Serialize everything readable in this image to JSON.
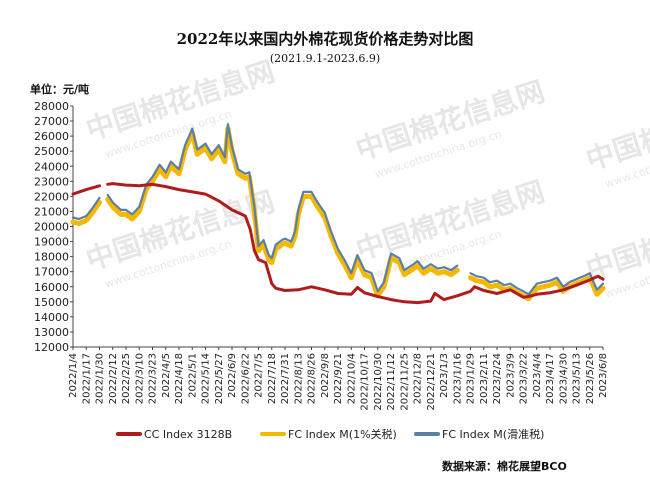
{
  "chart_data": {
    "type": "line",
    "title": "2022年以来国内外棉花现货价格走势对比图",
    "subtitle": "(2021.9.1-2023.6.9)",
    "unit_label": "单位：元/吨",
    "source": "数据来源：棉花展望BCO",
    "watermark_cn": "中国棉花信息网",
    "watermark_url": "www.cottonchina.org.cn",
    "ylim": [
      12000,
      28000
    ],
    "yticks": [
      12000,
      13000,
      14000,
      15000,
      16000,
      17000,
      18000,
      19000,
      20000,
      21000,
      22000,
      23000,
      24000,
      25000,
      26000,
      27000,
      28000
    ],
    "x_start": "2022/1/4",
    "x_end": "2023/6/8",
    "xticks": [
      "2022/1/4",
      "2022/1/17",
      "2022/1/30",
      "2022/2/12",
      "2022/2/25",
      "2022/3/10",
      "2022/3/23",
      "2022/4/5",
      "2022/4/18",
      "2022/5/1",
      "2022/5/14",
      "2022/5/27",
      "2022/6/9",
      "2022/6/22",
      "2022/7/5",
      "2022/7/18",
      "2022/7/31",
      "2022/8/13",
      "2022/8/26",
      "2022/9/8",
      "2022/9/21",
      "2022/10/4",
      "2022/10/17",
      "2022/10/30",
      "2022/11/12",
      "2022/11/25",
      "2022/12/8",
      "2022/12/21",
      "2023/1/3",
      "2023/1/16",
      "2023/1/29",
      "2023/2/11",
      "2023/2/24",
      "2023/3/9",
      "2023/3/22",
      "2023/4/4",
      "2023/4/17",
      "2023/4/30",
      "2023/5/13",
      "2023/5/26",
      "2023/6/8"
    ],
    "legend_position": "bottom",
    "series": [
      {
        "name": "CC Index 3128B",
        "color": "#b01c1c",
        "points": [
          [
            "2022/1/4",
            22150
          ],
          [
            "2022/1/17",
            22450
          ],
          [
            "2022/1/30",
            22700
          ],
          null,
          [
            "2022/2/7",
            22800
          ],
          [
            "2022/2/12",
            22850
          ],
          [
            "2022/2/25",
            22750
          ],
          [
            "2022/3/10",
            22700
          ],
          [
            "2022/3/23",
            22800
          ],
          [
            "2022/4/5",
            22650
          ],
          [
            "2022/4/18",
            22450
          ],
          [
            "2022/5/1",
            22300
          ],
          [
            "2022/5/14",
            22150
          ],
          [
            "2022/5/27",
            21700
          ],
          [
            "2022/6/9",
            21100
          ],
          [
            "2022/6/22",
            20700
          ],
          [
            "2022/6/27",
            19800
          ],
          [
            "2022/7/1",
            18400
          ],
          [
            "2022/7/5",
            17800
          ],
          [
            "2022/7/12",
            17600
          ],
          [
            "2022/7/18",
            16200
          ],
          [
            "2022/7/22",
            15900
          ],
          [
            "2022/7/31",
            15750
          ],
          [
            "2022/8/13",
            15800
          ],
          [
            "2022/8/26",
            16000
          ],
          [
            "2022/9/8",
            15800
          ],
          [
            "2022/9/21",
            15550
          ],
          [
            "2022/10/4",
            15500
          ],
          [
            "2022/10/10",
            15950
          ],
          [
            "2022/10/17",
            15600
          ],
          [
            "2022/10/30",
            15350
          ],
          [
            "2022/11/12",
            15150
          ],
          [
            "2022/11/25",
            15000
          ],
          [
            "2022/12/8",
            14950
          ],
          [
            "2022/12/21",
            15050
          ],
          [
            "2022/12/25",
            15550
          ],
          [
            "2023/1/3",
            15150
          ],
          [
            "2023/1/16",
            15400
          ],
          [
            "2023/1/29",
            15700
          ],
          [
            "2023/2/2",
            16000
          ],
          [
            "2023/2/11",
            15750
          ],
          [
            "2023/2/24",
            15550
          ],
          [
            "2023/3/9",
            15800
          ],
          [
            "2023/3/22",
            15300
          ],
          [
            "2023/3/27",
            15350
          ],
          [
            "2023/4/4",
            15500
          ],
          [
            "2023/4/17",
            15600
          ],
          [
            "2023/4/30",
            15800
          ],
          [
            "2023/5/13",
            16100
          ],
          [
            "2023/5/26",
            16450
          ],
          [
            "2023/6/3",
            16700
          ],
          [
            "2023/6/8",
            16500
          ]
        ]
      },
      {
        "name": "FC Index M(1%关税)",
        "color": "#f5b800",
        "points": [
          [
            "2022/1/4",
            20300
          ],
          [
            "2022/1/10",
            20200
          ],
          [
            "2022/1/17",
            20400
          ],
          [
            "2022/1/24",
            21000
          ],
          [
            "2022/1/30",
            21600
          ],
          null,
          [
            "2022/2/7",
            21800
          ],
          [
            "2022/2/12",
            21300
          ],
          [
            "2022/2/20",
            20800
          ],
          [
            "2022/2/25",
            20800
          ],
          [
            "2022/3/3",
            20500
          ],
          [
            "2022/3/10",
            21000
          ],
          [
            "2022/3/17",
            22500
          ],
          [
            "2022/3/23",
            23000
          ],
          [
            "2022/3/30",
            23800
          ],
          [
            "2022/4/5",
            23300
          ],
          [
            "2022/4/10",
            24000
          ],
          [
            "2022/4/18",
            23500
          ],
          [
            "2022/4/24",
            25100
          ],
          [
            "2022/5/1",
            26200
          ],
          [
            "2022/5/6",
            24800
          ],
          [
            "2022/5/14",
            25200
          ],
          [
            "2022/5/20",
            24500
          ],
          [
            "2022/5/27",
            25100
          ],
          [
            "2022/6/2",
            24300
          ],
          [
            "2022/6/5",
            26500
          ],
          [
            "2022/6/9",
            25000
          ],
          [
            "2022/6/15",
            23500
          ],
          [
            "2022/6/22",
            23200
          ],
          [
            "2022/6/26",
            23300
          ],
          [
            "2022/7/1",
            21000
          ],
          [
            "2022/7/5",
            18400
          ],
          [
            "2022/7/10",
            18800
          ],
          [
            "2022/7/15",
            17800
          ],
          [
            "2022/7/18",
            17600
          ],
          [
            "2022/7/22",
            18500
          ],
          [
            "2022/7/28",
            18800
          ],
          [
            "2022/7/31",
            18900
          ],
          [
            "2022/8/6",
            18700
          ],
          [
            "2022/8/10",
            19400
          ],
          [
            "2022/8/13",
            20800
          ],
          [
            "2022/8/18",
            22000
          ],
          [
            "2022/8/26",
            22000
          ],
          [
            "2022/9/1",
            21300
          ],
          [
            "2022/9/8",
            20600
          ],
          [
            "2022/9/14",
            19400
          ],
          [
            "2022/9/21",
            18200
          ],
          [
            "2022/9/28",
            17400
          ],
          [
            "2022/10/4",
            16600
          ],
          [
            "2022/10/10",
            17800
          ],
          [
            "2022/10/17",
            16800
          ],
          [
            "2022/10/24",
            16600
          ],
          [
            "2022/10/30",
            15400
          ],
          [
            "2022/11/5",
            16000
          ],
          [
            "2022/11/12",
            17900
          ],
          [
            "2022/11/20",
            17600
          ],
          [
            "2022/11/25",
            16800
          ],
          [
            "2022/12/2",
            17100
          ],
          [
            "2022/12/8",
            17400
          ],
          [
            "2022/12/14",
            16900
          ],
          [
            "2022/12/21",
            17200
          ],
          [
            "2022/12/28",
            16900
          ],
          [
            "2023/1/3",
            17000
          ],
          [
            "2023/1/10",
            16800
          ],
          [
            "2023/1/16",
            17100
          ],
          null,
          [
            "2023/1/29",
            16600
          ],
          [
            "2023/2/4",
            16400
          ],
          [
            "2023/2/11",
            16300
          ],
          [
            "2023/2/17",
            16000
          ],
          [
            "2023/2/24",
            16100
          ],
          [
            "2023/3/3",
            15800
          ],
          [
            "2023/3/9",
            15900
          ],
          [
            "2023/3/16",
            15600
          ],
          [
            "2023/3/22",
            15400
          ],
          [
            "2023/3/27",
            15200
          ],
          [
            "2023/4/4",
            15900
          ],
          [
            "2023/4/10",
            16000
          ],
          [
            "2023/4/17",
            16100
          ],
          [
            "2023/4/24",
            16300
          ],
          [
            "2023/4/30",
            15700
          ],
          [
            "2023/5/6",
            16000
          ],
          [
            "2023/5/13",
            16200
          ],
          [
            "2023/5/20",
            16400
          ],
          [
            "2023/5/26",
            16600
          ],
          [
            "2023/6/2",
            15500
          ],
          [
            "2023/6/8",
            15900
          ]
        ]
      },
      {
        "name": "FC Index M(滑准税)",
        "color": "#5b7fa5",
        "points": [
          [
            "2022/1/4",
            20600
          ],
          [
            "2022/1/10",
            20500
          ],
          [
            "2022/1/17",
            20700
          ],
          [
            "2022/1/24",
            21300
          ],
          [
            "2022/1/30",
            21900
          ],
          null,
          [
            "2022/2/7",
            22100
          ],
          [
            "2022/2/12",
            21600
          ],
          [
            "2022/2/20",
            21100
          ],
          [
            "2022/2/25",
            21100
          ],
          [
            "2022/3/3",
            20800
          ],
          [
            "2022/3/10",
            21300
          ],
          [
            "2022/3/17",
            22800
          ],
          [
            "2022/3/23",
            23300
          ],
          [
            "2022/3/30",
            24100
          ],
          [
            "2022/4/5",
            23600
          ],
          [
            "2022/4/10",
            24300
          ],
          [
            "2022/4/18",
            23800
          ],
          [
            "2022/4/24",
            25400
          ],
          [
            "2022/5/1",
            26500
          ],
          [
            "2022/5/6",
            25100
          ],
          [
            "2022/5/14",
            25500
          ],
          [
            "2022/5/20",
            24800
          ],
          [
            "2022/5/27",
            25400
          ],
          [
            "2022/6/2",
            24600
          ],
          [
            "2022/6/5",
            26800
          ],
          [
            "2022/6/9",
            25300
          ],
          [
            "2022/6/15",
            23800
          ],
          [
            "2022/6/22",
            23500
          ],
          [
            "2022/6/26",
            23600
          ],
          [
            "2022/7/1",
            21300
          ],
          [
            "2022/7/5",
            18700
          ],
          [
            "2022/7/10",
            19100
          ],
          [
            "2022/7/15",
            18100
          ],
          [
            "2022/7/18",
            17900
          ],
          [
            "2022/7/22",
            18800
          ],
          [
            "2022/7/28",
            19100
          ],
          [
            "2022/7/31",
            19200
          ],
          [
            "2022/8/6",
            19000
          ],
          [
            "2022/8/10",
            19700
          ],
          [
            "2022/8/13",
            21100
          ],
          [
            "2022/8/18",
            22300
          ],
          [
            "2022/8/26",
            22300
          ],
          [
            "2022/9/1",
            21600
          ],
          [
            "2022/9/8",
            20900
          ],
          [
            "2022/9/14",
            19700
          ],
          [
            "2022/9/21",
            18500
          ],
          [
            "2022/9/28",
            17700
          ],
          [
            "2022/10/4",
            16900
          ],
          [
            "2022/10/10",
            18100
          ],
          [
            "2022/10/17",
            17100
          ],
          [
            "2022/10/24",
            16900
          ],
          [
            "2022/10/30",
            15700
          ],
          [
            "2022/11/5",
            16300
          ],
          [
            "2022/11/12",
            18200
          ],
          [
            "2022/11/20",
            17900
          ],
          [
            "2022/11/25",
            17100
          ],
          [
            "2022/12/2",
            17400
          ],
          [
            "2022/12/8",
            17700
          ],
          [
            "2022/12/14",
            17200
          ],
          [
            "2022/12/21",
            17500
          ],
          [
            "2022/12/28",
            17200
          ],
          [
            "2023/1/3",
            17300
          ],
          [
            "2023/1/10",
            17100
          ],
          [
            "2023/1/16",
            17400
          ],
          null,
          [
            "2023/1/29",
            16900
          ],
          [
            "2023/2/4",
            16700
          ],
          [
            "2023/2/11",
            16600
          ],
          [
            "2023/2/17",
            16300
          ],
          [
            "2023/2/24",
            16400
          ],
          [
            "2023/3/3",
            16100
          ],
          [
            "2023/3/9",
            16200
          ],
          [
            "2023/3/16",
            15900
          ],
          [
            "2023/3/22",
            15700
          ],
          [
            "2023/3/27",
            15500
          ],
          [
            "2023/4/4",
            16200
          ],
          [
            "2023/4/10",
            16300
          ],
          [
            "2023/4/17",
            16400
          ],
          [
            "2023/4/24",
            16600
          ],
          [
            "2023/4/30",
            16000
          ],
          [
            "2023/5/6",
            16300
          ],
          [
            "2023/5/13",
            16500
          ],
          [
            "2023/5/20",
            16700
          ],
          [
            "2023/5/26",
            16900
          ],
          [
            "2023/6/2",
            15800
          ],
          [
            "2023/6/8",
            16200
          ]
        ]
      }
    ]
  }
}
